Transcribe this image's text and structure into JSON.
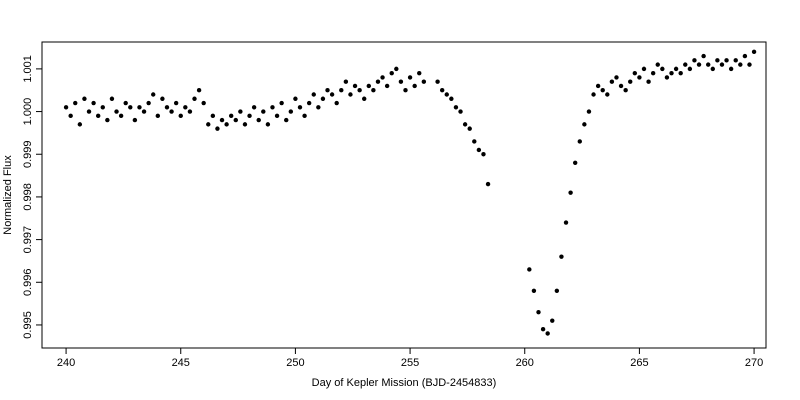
{
  "chart_data": {
    "type": "scatter",
    "x_label": "Day of Kepler Mission (BJD-2454833)",
    "y_label": "Normalized Flux",
    "color": "#000000",
    "xlim": [
      238.95,
      270.52
    ],
    "ylim": [
      0.99446,
      1.00163
    ],
    "xticks": [
      240,
      245,
      250,
      255,
      260,
      265,
      270
    ],
    "yticks": [
      0.995,
      0.996,
      0.997,
      0.998,
      0.999,
      {
        "value": 1,
        "label": "1.000"
      },
      1.001
    ],
    "x": [
      240.0,
      240.2,
      240.4,
      240.6,
      240.8,
      241.0,
      241.2,
      241.4,
      241.6,
      241.8,
      242.0,
      242.2,
      242.4,
      242.6,
      242.8,
      243.0,
      243.2,
      243.4,
      243.6,
      243.8,
      244.0,
      244.2,
      244.4,
      244.6,
      244.8,
      245.0,
      245.2,
      245.4,
      245.6,
      245.8,
      246.0,
      246.2,
      246.4,
      246.6,
      246.8,
      247.0,
      247.2,
      247.4,
      247.6,
      247.8,
      248.0,
      248.2,
      248.4,
      248.6,
      248.8,
      249.0,
      249.2,
      249.4,
      249.6,
      249.8,
      250.0,
      250.2,
      250.4,
      250.6,
      250.8,
      251.0,
      251.2,
      251.4,
      251.6,
      251.8,
      252.0,
      252.2,
      252.4,
      252.6,
      252.8,
      253.0,
      253.2,
      253.4,
      253.6,
      253.8,
      254.0,
      254.2,
      254.4,
      254.6,
      254.8,
      255.0,
      255.2,
      255.4,
      255.6,
      256.2,
      256.4,
      256.6,
      256.8,
      257.0,
      257.2,
      257.4,
      257.6,
      257.8,
      258.0,
      258.2,
      258.4,
      260.2,
      260.4,
      260.6,
      260.8,
      261.0,
      261.2,
      261.4,
      261.6,
      261.8,
      262.0,
      262.2,
      262.4,
      262.6,
      262.8,
      263.0,
      263.2,
      263.4,
      263.6,
      263.8,
      264.0,
      264.2,
      264.4,
      264.6,
      264.8,
      265.0,
      265.2,
      265.4,
      265.6,
      265.8,
      266.0,
      266.2,
      266.4,
      266.6,
      266.8,
      267.0,
      267.2,
      267.4,
      267.6,
      267.8,
      268.0,
      268.2,
      268.4,
      268.6,
      268.8,
      269.0,
      269.2,
      269.4,
      269.6,
      269.8,
      270.0
    ],
    "values": [
      1.0001,
      0.9999,
      1.0002,
      0.9997,
      1.0003,
      1.0,
      1.0002,
      0.9999,
      1.0001,
      0.9998,
      1.0003,
      1.0,
      0.9999,
      1.0002,
      1.0001,
      0.9998,
      1.0001,
      1.0,
      1.0002,
      1.0004,
      0.9999,
      1.0003,
      1.0001,
      1.0,
      1.0002,
      0.9999,
      1.0001,
      1.0,
      1.0003,
      1.0005,
      1.0002,
      0.9997,
      0.9999,
      0.9996,
      0.9998,
      0.9997,
      0.9999,
      0.9998,
      1.0,
      0.9997,
      0.9999,
      1.0001,
      0.9998,
      1.0,
      0.9997,
      1.0001,
      0.9999,
      1.0002,
      0.9998,
      1.0,
      1.0003,
      1.0001,
      0.9999,
      1.0002,
      1.0004,
      1.0001,
      1.0003,
      1.0005,
      1.0004,
      1.0002,
      1.0005,
      1.0007,
      1.0004,
      1.0006,
      1.0005,
      1.0003,
      1.0006,
      1.0005,
      1.0007,
      1.0008,
      1.0006,
      1.0009,
      1.001,
      1.0007,
      1.0005,
      1.0008,
      1.0006,
      1.0009,
      1.0007,
      1.0007,
      1.0005,
      1.0004,
      1.0003,
      1.0001,
      1.0,
      0.9997,
      0.9996,
      0.9993,
      0.9991,
      0.999,
      0.9983,
      0.9963,
      0.9958,
      0.9953,
      0.9949,
      0.9948,
      0.9951,
      0.9958,
      0.9966,
      0.9974,
      0.9981,
      0.9988,
      0.9993,
      0.9997,
      1.0,
      1.0004,
      1.0006,
      1.0005,
      1.0004,
      1.0007,
      1.0008,
      1.0006,
      1.0005,
      1.0007,
      1.0009,
      1.0008,
      1.001,
      1.0007,
      1.0009,
      1.0011,
      1.001,
      1.0008,
      1.0009,
      1.001,
      1.0009,
      1.0011,
      1.001,
      1.0012,
      1.0011,
      1.0013,
      1.0011,
      1.001,
      1.0012,
      1.0011,
      1.0012,
      1.001,
      1.0012,
      1.0011,
      1.0013,
      1.0011,
      1.0014
    ]
  }
}
